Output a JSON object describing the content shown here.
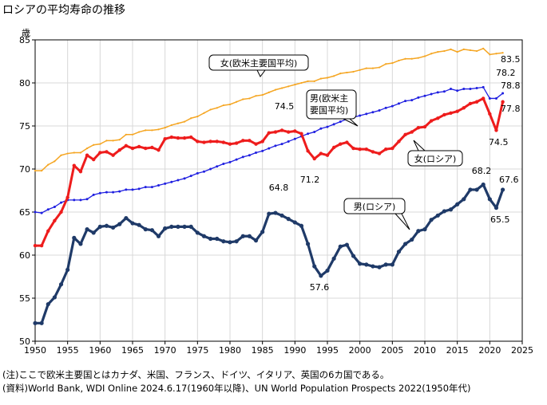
{
  "chart_data": {
    "type": "line",
    "title": "ロシアの平均寿命の推移",
    "ylabel": "歳",
    "xlabel": "",
    "xlim": [
      1950,
      2025
    ],
    "ylim": [
      50,
      85
    ],
    "xticks": [
      1950,
      1955,
      1960,
      1965,
      1970,
      1975,
      1980,
      1985,
      1990,
      1995,
      2000,
      2005,
      2010,
      2015,
      2020,
      2025
    ],
    "yticks": [
      50,
      55,
      60,
      65,
      70,
      75,
      80,
      85
    ],
    "grid": true,
    "series": [
      {
        "name": "女(欧米主要国平均)",
        "color": "#F5A623",
        "x": [
          1950,
          1951,
          1952,
          1953,
          1954,
          1955,
          1956,
          1957,
          1958,
          1959,
          1960,
          1961,
          1962,
          1963,
          1964,
          1965,
          1966,
          1967,
          1968,
          1969,
          1970,
          1971,
          1972,
          1973,
          1974,
          1975,
          1976,
          1977,
          1978,
          1979,
          1980,
          1981,
          1982,
          1983,
          1984,
          1985,
          1986,
          1987,
          1988,
          1989,
          1990,
          1991,
          1992,
          1993,
          1994,
          1995,
          1996,
          1997,
          1998,
          1999,
          2000,
          2001,
          2002,
          2003,
          2004,
          2005,
          2006,
          2007,
          2008,
          2009,
          2010,
          2011,
          2012,
          2013,
          2014,
          2015,
          2016,
          2017,
          2018,
          2019,
          2020,
          2021,
          2022
        ],
        "values": [
          69.8,
          69.8,
          70.5,
          70.9,
          71.6,
          71.8,
          71.9,
          71.9,
          72.4,
          72.8,
          72.9,
          73.3,
          73.3,
          73.4,
          74.0,
          74.0,
          74.3,
          74.5,
          74.5,
          74.6,
          74.8,
          75.1,
          75.3,
          75.5,
          75.9,
          76.1,
          76.5,
          76.9,
          77.1,
          77.4,
          77.5,
          77.8,
          78.1,
          78.2,
          78.5,
          78.6,
          78.9,
          79.2,
          79.4,
          79.6,
          79.8,
          80.0,
          80.2,
          80.2,
          80.5,
          80.6,
          80.8,
          81.1,
          81.2,
          81.3,
          81.5,
          81.7,
          81.7,
          81.8,
          82.2,
          82.3,
          82.6,
          82.8,
          82.8,
          82.9,
          83.1,
          83.4,
          83.6,
          83.7,
          83.9,
          83.6,
          83.9,
          83.8,
          83.7,
          84.0,
          83.3,
          83.4,
          83.5
        ]
      },
      {
        "name": "男(欧米主要国平均)",
        "color": "#1F1FE0",
        "x": [
          1950,
          1951,
          1952,
          1953,
          1954,
          1955,
          1956,
          1957,
          1958,
          1959,
          1960,
          1961,
          1962,
          1963,
          1964,
          1965,
          1966,
          1967,
          1968,
          1969,
          1970,
          1971,
          1972,
          1973,
          1974,
          1975,
          1976,
          1977,
          1978,
          1979,
          1980,
          1981,
          1982,
          1983,
          1984,
          1985,
          1986,
          1987,
          1988,
          1989,
          1990,
          1991,
          1992,
          1993,
          1994,
          1995,
          1996,
          1997,
          1998,
          1999,
          2000,
          2001,
          2002,
          2003,
          2004,
          2005,
          2006,
          2007,
          2008,
          2009,
          2010,
          2011,
          2012,
          2013,
          2014,
          2015,
          2016,
          2017,
          2018,
          2019,
          2020,
          2021,
          2022
        ],
        "values": [
          65.0,
          64.9,
          65.3,
          65.6,
          66.1,
          66.4,
          66.4,
          66.4,
          66.5,
          67.0,
          67.2,
          67.3,
          67.3,
          67.4,
          67.6,
          67.6,
          67.7,
          67.9,
          67.9,
          68.1,
          68.3,
          68.5,
          68.7,
          68.9,
          69.2,
          69.5,
          69.7,
          70.0,
          70.3,
          70.6,
          70.8,
          71.1,
          71.4,
          71.6,
          71.9,
          72.1,
          72.4,
          72.7,
          72.9,
          73.2,
          73.5,
          73.8,
          74.1,
          74.3,
          74.7,
          74.9,
          75.2,
          75.5,
          75.8,
          76.0,
          76.2,
          76.4,
          76.6,
          76.8,
          77.1,
          77.3,
          77.6,
          77.9,
          78.0,
          78.3,
          78.5,
          78.7,
          78.9,
          79.0,
          79.3,
          79.1,
          79.3,
          79.3,
          79.4,
          79.5,
          78.2,
          78.2,
          78.8
        ]
      },
      {
        "name": "女(ロシア)",
        "color": "#EE1C1C",
        "x": [
          1950,
          1951,
          1952,
          1953,
          1954,
          1955,
          1956,
          1957,
          1958,
          1959,
          1960,
          1961,
          1962,
          1963,
          1964,
          1965,
          1966,
          1967,
          1968,
          1969,
          1970,
          1971,
          1972,
          1973,
          1974,
          1975,
          1976,
          1977,
          1978,
          1979,
          1980,
          1981,
          1982,
          1983,
          1984,
          1985,
          1986,
          1987,
          1988,
          1989,
          1990,
          1991,
          1992,
          1993,
          1994,
          1995,
          1996,
          1997,
          1998,
          1999,
          2000,
          2001,
          2002,
          2003,
          2004,
          2005,
          2006,
          2007,
          2008,
          2009,
          2010,
          2011,
          2012,
          2013,
          2014,
          2015,
          2016,
          2017,
          2018,
          2019,
          2020,
          2021,
          2022
        ],
        "values": [
          61.1,
          61.1,
          62.8,
          64.0,
          65.0,
          66.7,
          70.4,
          69.7,
          71.6,
          71.1,
          71.9,
          72.0,
          71.6,
          72.2,
          72.7,
          72.4,
          72.6,
          72.4,
          72.5,
          72.2,
          73.5,
          73.7,
          73.6,
          73.6,
          73.7,
          73.2,
          73.1,
          73.2,
          73.2,
          73.1,
          72.9,
          73.0,
          73.3,
          73.3,
          72.9,
          73.2,
          74.2,
          74.3,
          74.5,
          74.3,
          74.4,
          74.1,
          72.1,
          71.2,
          71.8,
          71.6,
          72.5,
          72.9,
          73.1,
          72.4,
          72.3,
          72.3,
          72.0,
          71.8,
          72.3,
          72.4,
          73.2,
          74.0,
          74.3,
          74.8,
          74.9,
          75.6,
          75.9,
          76.3,
          76.5,
          76.7,
          77.1,
          77.6,
          77.8,
          78.2,
          76.4,
          74.5,
          77.8
        ]
      },
      {
        "name": "男(ロシア)",
        "color": "#1F3A68",
        "x": [
          1950,
          1951,
          1952,
          1953,
          1954,
          1955,
          1956,
          1957,
          1958,
          1959,
          1960,
          1961,
          1962,
          1963,
          1964,
          1965,
          1966,
          1967,
          1968,
          1969,
          1970,
          1971,
          1972,
          1973,
          1974,
          1975,
          1976,
          1977,
          1978,
          1979,
          1980,
          1981,
          1982,
          1983,
          1984,
          1985,
          1986,
          1987,
          1988,
          1989,
          1990,
          1991,
          1992,
          1993,
          1994,
          1995,
          1996,
          1997,
          1998,
          1999,
          2000,
          2001,
          2002,
          2003,
          2004,
          2005,
          2006,
          2007,
          2008,
          2009,
          2010,
          2011,
          2012,
          2013,
          2014,
          2015,
          2016,
          2017,
          2018,
          2019,
          2020,
          2021,
          2022
        ],
        "values": [
          52.1,
          52.1,
          54.3,
          55.1,
          56.6,
          58.3,
          62.0,
          61.3,
          63.0,
          62.6,
          63.3,
          63.4,
          63.2,
          63.6,
          64.3,
          63.7,
          63.5,
          63.0,
          62.9,
          62.2,
          63.1,
          63.3,
          63.3,
          63.3,
          63.3,
          62.6,
          62.2,
          61.9,
          61.9,
          61.6,
          61.5,
          61.6,
          62.2,
          62.2,
          61.7,
          62.7,
          64.8,
          64.9,
          64.6,
          64.2,
          63.8,
          63.4,
          61.3,
          58.7,
          57.6,
          58.2,
          59.6,
          61.0,
          61.2,
          59.9,
          59.0,
          58.9,
          58.7,
          58.6,
          58.9,
          58.9,
          60.4,
          61.3,
          61.8,
          62.8,
          63.0,
          64.1,
          64.6,
          65.1,
          65.3,
          65.9,
          66.5,
          67.6,
          67.6,
          68.2,
          66.5,
          65.5,
          67.6
        ]
      }
    ],
    "data_labels": [
      {
        "text": "83.5"
      },
      {
        "text": "78.2"
      },
      {
        "text": "78.8"
      },
      {
        "text": "77.8"
      },
      {
        "text": "74.5"
      },
      {
        "text": "74.5"
      },
      {
        "text": "71.2"
      },
      {
        "text": "64.8"
      },
      {
        "text": "57.6"
      },
      {
        "text": "68.2"
      },
      {
        "text": "67.6"
      },
      {
        "text": "65.5"
      }
    ],
    "annotations": [
      {
        "text": "女(欧米主要国平均)"
      },
      {
        "text": "男(欧米主\n要国平均)"
      },
      {
        "text": "女(ロシア)"
      },
      {
        "text": "男(ロシア)"
      }
    ]
  },
  "notes": {
    "line1": "(注)ここで欧米主要国とはカナダ、米国、フランス、ドイツ、イタリア、英国の6カ国である。",
    "line2": "(資料)World Bank, WDI Online 2024.6.17(1960年以降)、UN World Population Prospects 2022(1950年代)"
  }
}
